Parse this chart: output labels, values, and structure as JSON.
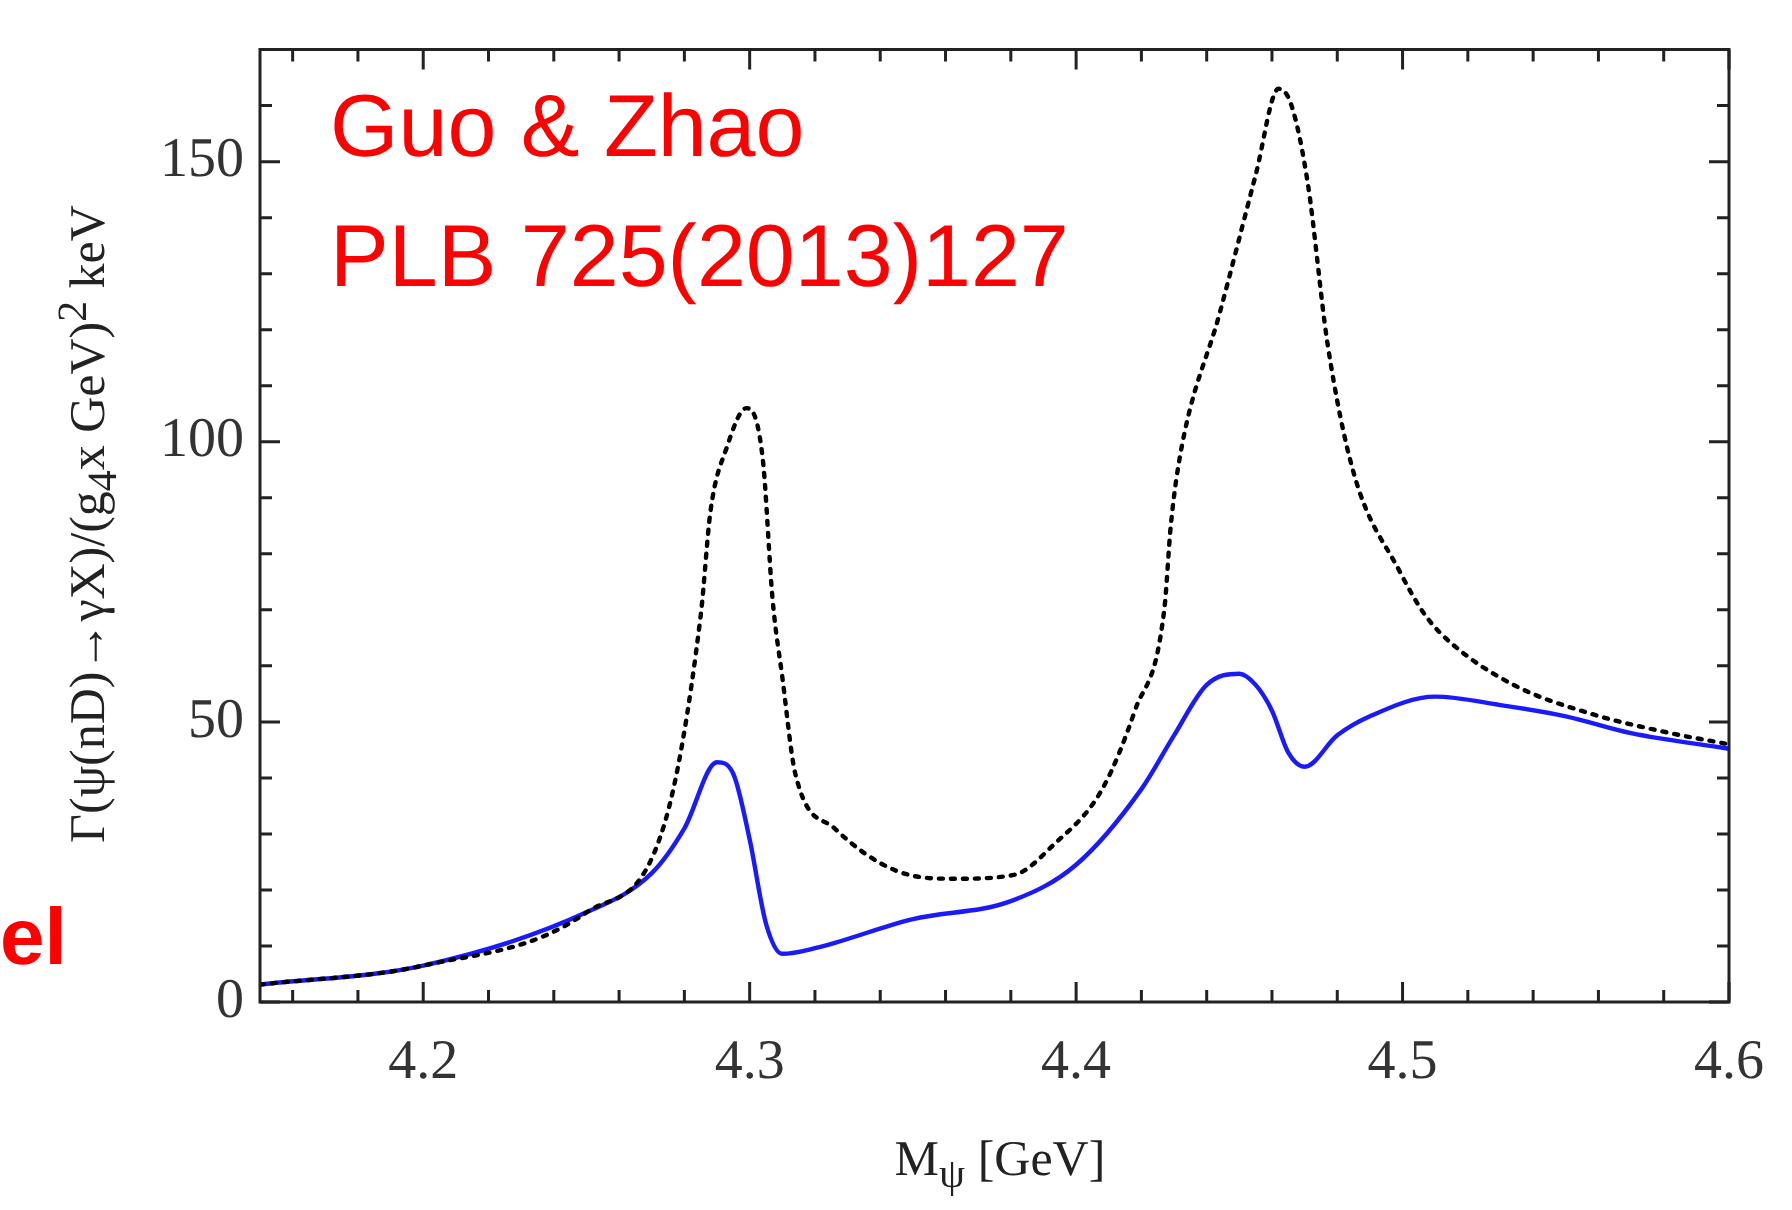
{
  "chart_data": {
    "type": "line",
    "xlabel": "M$_{ψ}$ [GeV]",
    "ylabel": "Γ(ψ(nD)→γX)/(g$_{4}$x GeV)$^{2}$ keV",
    "annotations": [
      "Guo & Zhao",
      "PLB 725(2013)127",
      "el"
    ],
    "xlim": [
      4.15,
      4.6
    ],
    "xticks": [
      {
        "value": 4.16,
        "label": null
      },
      {
        "value": 4.18,
        "label": null
      },
      4.2,
      {
        "value": 4.22,
        "label": null
      },
      {
        "value": 4.24,
        "label": null
      },
      {
        "value": 4.26,
        "label": null
      },
      {
        "value": 4.28,
        "label": null
      },
      4.3,
      {
        "value": 4.32,
        "label": null
      },
      {
        "value": 4.34,
        "label": null
      },
      {
        "value": 4.36,
        "label": null
      },
      {
        "value": 4.38,
        "label": null
      },
      4.4,
      {
        "value": 4.42,
        "label": null
      },
      {
        "value": 4.44,
        "label": null
      },
      {
        "value": 4.46,
        "label": null
      },
      {
        "value": 4.48,
        "label": null
      },
      4.5,
      {
        "value": 4.52,
        "label": null
      },
      {
        "value": 4.54,
        "label": null
      },
      {
        "value": 4.56,
        "label": null
      },
      {
        "value": 4.58,
        "label": null
      },
      4.6
    ],
    "ylim": [
      0,
      170
    ],
    "yticks": [
      0,
      {
        "value": 10,
        "label": null
      },
      {
        "value": 20,
        "label": null
      },
      {
        "value": 30,
        "label": null
      },
      {
        "value": 40,
        "label": null
      },
      50,
      {
        "value": 60,
        "label": null
      },
      {
        "value": 70,
        "label": null
      },
      {
        "value": 80,
        "label": null
      },
      {
        "value": 90,
        "label": null
      },
      100,
      {
        "value": 110,
        "label": null
      },
      {
        "value": 120,
        "label": null
      },
      {
        "value": 130,
        "label": null
      },
      {
        "value": 140,
        "label": null
      },
      150,
      {
        "value": 160,
        "label": null
      }
    ],
    "grid": false,
    "legend": false,
    "marker": "none",
    "series": [
      {
        "color": "#000000",
        "line_style": "dotted",
        "x": [
          4.15,
          4.2,
          4.25,
          4.274,
          4.285,
          4.288,
          4.293,
          4.299,
          4.304,
          4.307,
          4.31,
          4.314,
          4.326,
          4.345,
          4.363,
          4.381,
          4.393,
          4.408,
          4.418,
          4.427,
          4.429,
          4.432,
          4.444,
          4.455,
          4.462,
          4.466,
          4.471,
          4.477,
          4.485,
          4.499,
          4.507,
          4.515,
          4.534,
          4.558,
          4.582,
          4.6
        ],
        "values": [
          3.1,
          6.5,
          16,
          32,
          69,
          87.6,
          99,
          106,
          97,
          72,
          58,
          40.7,
          31,
          23.4,
          22,
          22.7,
          28,
          38,
          52,
          70,
          85,
          98,
          123,
          147.6,
          163,
          160,
          146,
          117.6,
          94.5,
          77,
          69,
          64,
          56.6,
          51.4,
          48,
          46
        ]
      },
      {
        "color": "#1a1aff",
        "line_style": "solid",
        "x": [
          4.15,
          4.2,
          4.25,
          4.27,
          4.28,
          4.29,
          4.295,
          4.3,
          4.305,
          4.31,
          4.32,
          4.35,
          4.38,
          4.4,
          4.42,
          4.43,
          4.44,
          4.45,
          4.455,
          4.46,
          4.465,
          4.47,
          4.48,
          4.49,
          4.51,
          4.53,
          4.55,
          4.57,
          4.6
        ],
        "values": [
          3.1,
          6.5,
          16,
          23,
          31,
          42.8,
          40.7,
          29,
          14,
          8.6,
          9.6,
          14.8,
          18,
          24.5,
          38,
          47.6,
          56.6,
          58.6,
          56.6,
          52,
          44.5,
          42,
          47.6,
          51,
          54.5,
          53,
          51,
          48,
          45.2
        ]
      }
    ]
  }
}
